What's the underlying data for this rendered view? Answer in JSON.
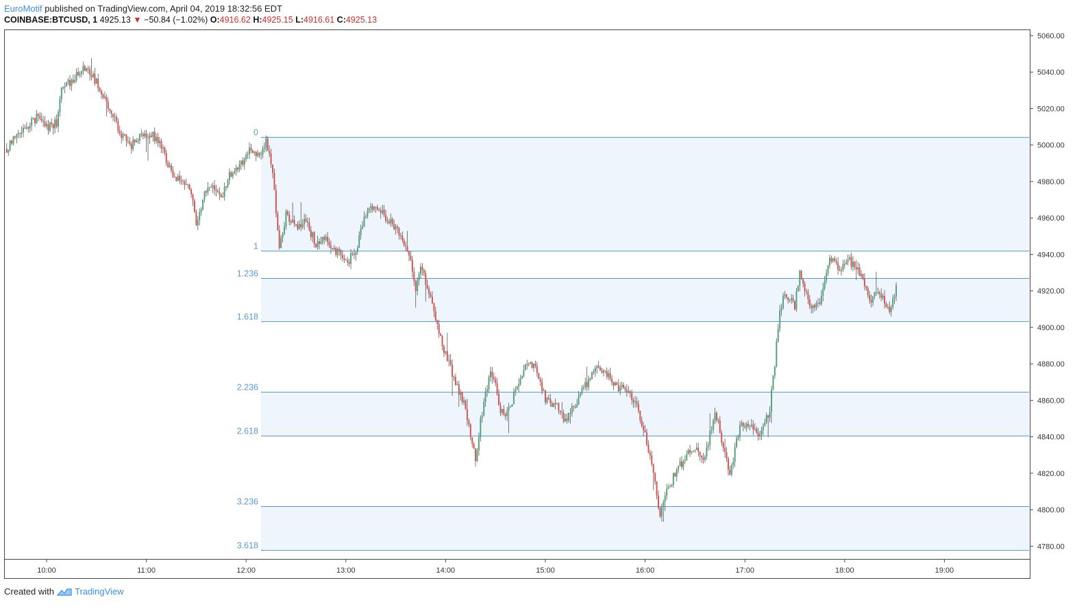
{
  "header": {
    "publisher": "EuroMotif",
    "published_text": "published on TradingView.com, April 04, 2019 18:32:56 EDT",
    "symbol": "COINBASE:BTCUSD, 1",
    "last": "4925.13",
    "change": "−50.84 (−1.02%)",
    "open_label": "O:",
    "open": "4916.62",
    "high_label": "H:",
    "high": "4925.15",
    "low_label": "L:",
    "low": "4916.61",
    "close_label": "C:",
    "close": "4925.13"
  },
  "footer": {
    "created_with": "Created with",
    "brand": "TradingView"
  },
  "colors": {
    "up": "#53a37a",
    "down": "#d9534f",
    "fib_line": "#5b9bd5",
    "fib_fill": "#eef5fc",
    "accent": "#3a8ee6"
  },
  "chart_data": {
    "type": "candlestick",
    "x_ticks": [
      "10:00",
      "11:00",
      "12:00",
      "13:00",
      "14:00",
      "15:00",
      "16:00",
      "17:00",
      "18:00",
      "19:00"
    ],
    "y_ticks": [
      "5060.00",
      "5040.00",
      "5020.00",
      "5000.00",
      "4980.00",
      "4960.00",
      "4940.00",
      "4920.00",
      "4900.00",
      "4880.00",
      "4860.00",
      "4840.00",
      "4820.00",
      "4800.00",
      "4780.00"
    ],
    "ylim": [
      4773,
      5063
    ],
    "fib_levels": [
      {
        "label": "0",
        "price": 5004.5
      },
      {
        "label": "1",
        "price": 4942.0
      },
      {
        "label": "1.236",
        "price": 4927.2
      },
      {
        "label": "1.618",
        "price": 4903.3
      },
      {
        "label": "2.236",
        "price": 4864.5
      },
      {
        "label": "2.618",
        "price": 4840.6
      },
      {
        "label": "3.236",
        "price": 4802.0
      },
      {
        "label": "3.618",
        "price": 4778.0
      }
    ],
    "path": [
      [
        9.6,
        4998
      ],
      [
        9.75,
        5008
      ],
      [
        9.9,
        5015
      ],
      [
        10.0,
        5010
      ],
      [
        10.1,
        5012
      ],
      [
        10.15,
        5030
      ],
      [
        10.25,
        5035
      ],
      [
        10.35,
        5042
      ],
      [
        10.45,
        5038
      ],
      [
        10.55,
        5030
      ],
      [
        10.65,
        5018
      ],
      [
        10.75,
        5005
      ],
      [
        10.85,
        5000
      ],
      [
        10.95,
        5005
      ],
      [
        11.05,
        5006
      ],
      [
        11.15,
        5000
      ],
      [
        11.25,
        4985
      ],
      [
        11.35,
        4980
      ],
      [
        11.45,
        4975
      ],
      [
        11.5,
        4955
      ],
      [
        11.58,
        4972
      ],
      [
        11.68,
        4978
      ],
      [
        11.75,
        4972
      ],
      [
        11.85,
        4985
      ],
      [
        11.95,
        4990
      ],
      [
        12.05,
        4998
      ],
      [
        12.15,
        4993
      ],
      [
        12.2,
        5002
      ],
      [
        12.27,
        4985
      ],
      [
        12.3,
        4965
      ],
      [
        12.33,
        4942
      ],
      [
        12.4,
        4962
      ],
      [
        12.5,
        4955
      ],
      [
        12.6,
        4958
      ],
      [
        12.7,
        4946
      ],
      [
        12.8,
        4948
      ],
      [
        12.9,
        4942
      ],
      [
        13.0,
        4935
      ],
      [
        13.1,
        4942
      ],
      [
        13.2,
        4962
      ],
      [
        13.3,
        4968
      ],
      [
        13.4,
        4960
      ],
      [
        13.5,
        4955
      ],
      [
        13.6,
        4945
      ],
      [
        13.65,
        4935
      ],
      [
        13.7,
        4920
      ],
      [
        13.75,
        4935
      ],
      [
        13.8,
        4925
      ],
      [
        13.9,
        4905
      ],
      [
        14.0,
        4885
      ],
      [
        14.1,
        4870
      ],
      [
        14.2,
        4855
      ],
      [
        14.25,
        4840
      ],
      [
        14.3,
        4828
      ],
      [
        14.35,
        4848
      ],
      [
        14.4,
        4865
      ],
      [
        14.45,
        4875
      ],
      [
        14.5,
        4868
      ],
      [
        14.55,
        4855
      ],
      [
        14.6,
        4850
      ],
      [
        14.7,
        4865
      ],
      [
        14.8,
        4878
      ],
      [
        14.9,
        4879
      ],
      [
        15.0,
        4860
      ],
      [
        15.1,
        4858
      ],
      [
        15.2,
        4848
      ],
      [
        15.3,
        4858
      ],
      [
        15.4,
        4868
      ],
      [
        15.5,
        4878
      ],
      [
        15.6,
        4875
      ],
      [
        15.7,
        4868
      ],
      [
        15.8,
        4866
      ],
      [
        15.9,
        4860
      ],
      [
        16.0,
        4840
      ],
      [
        16.05,
        4830
      ],
      [
        16.1,
        4815
      ],
      [
        16.15,
        4795
      ],
      [
        16.2,
        4808
      ],
      [
        16.3,
        4820
      ],
      [
        16.4,
        4828
      ],
      [
        16.5,
        4835
      ],
      [
        16.6,
        4828
      ],
      [
        16.7,
        4855
      ],
      [
        16.78,
        4835
      ],
      [
        16.85,
        4820
      ],
      [
        16.95,
        4845
      ],
      [
        17.05,
        4848
      ],
      [
        17.15,
        4840
      ],
      [
        17.25,
        4855
      ],
      [
        17.3,
        4880
      ],
      [
        17.35,
        4910
      ],
      [
        17.4,
        4918
      ],
      [
        17.5,
        4912
      ],
      [
        17.55,
        4932
      ],
      [
        17.65,
        4910
      ],
      [
        17.75,
        4912
      ],
      [
        17.85,
        4938
      ],
      [
        17.95,
        4932
      ],
      [
        18.05,
        4936
      ],
      [
        18.15,
        4930
      ],
      [
        18.25,
        4915
      ],
      [
        18.35,
        4920
      ],
      [
        18.42,
        4910
      ],
      [
        18.47,
        4910
      ],
      [
        18.52,
        4924
      ]
    ]
  }
}
